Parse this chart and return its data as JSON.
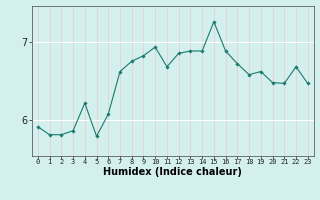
{
  "x": [
    0,
    1,
    2,
    3,
    4,
    5,
    6,
    7,
    8,
    9,
    10,
    11,
    12,
    13,
    14,
    15,
    16,
    17,
    18,
    19,
    20,
    21,
    22,
    23
  ],
  "y": [
    5.92,
    5.82,
    5.82,
    5.87,
    6.22,
    5.8,
    6.08,
    6.62,
    6.75,
    6.82,
    6.93,
    6.68,
    6.85,
    6.88,
    6.88,
    7.25,
    6.88,
    6.72,
    6.58,
    6.62,
    6.48,
    6.47,
    6.68,
    6.47
  ],
  "line_color": "#1a7a6e",
  "marker": "D",
  "marker_size": 1.8,
  "bg_color": "#d4f0ee",
  "grid_color_major": "#ffffff",
  "grid_color_minor": "#e8c8c8",
  "xlabel": "Humidex (Indice chaleur)",
  "xlabel_fontsize": 7,
  "ytick_labels": [
    "6",
    "7"
  ],
  "ytick_vals": [
    6,
    7
  ],
  "ylim": [
    5.55,
    7.45
  ],
  "xlim": [
    -0.5,
    23.5
  ],
  "title": ""
}
